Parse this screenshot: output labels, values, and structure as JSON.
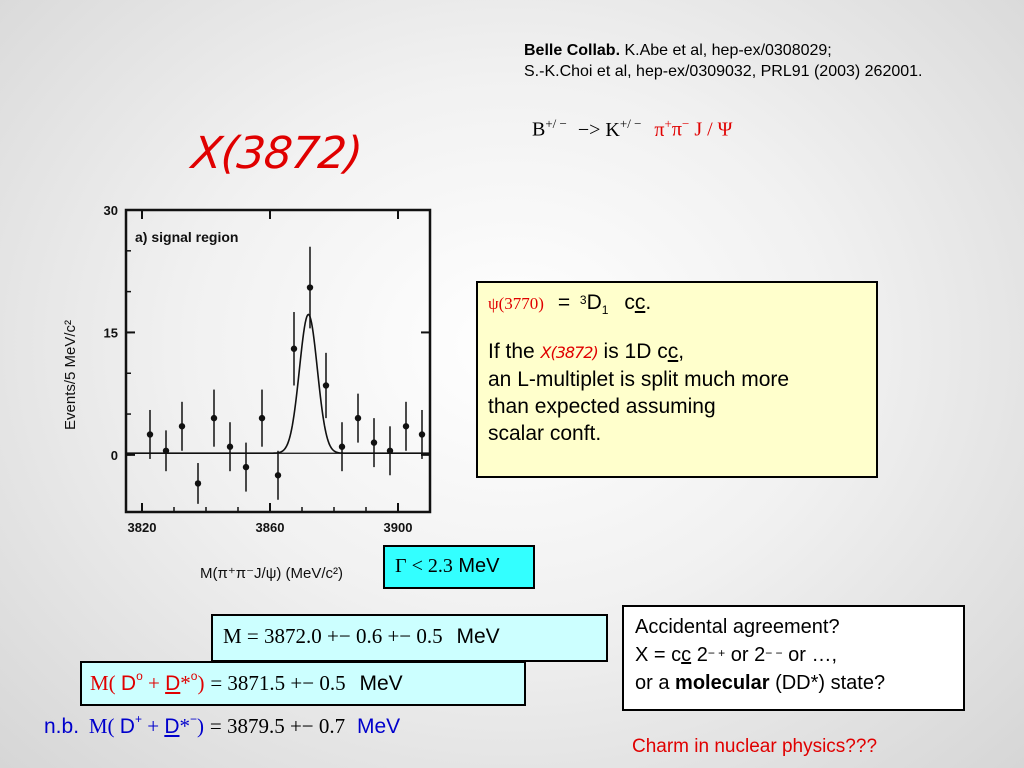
{
  "reference": {
    "bold": "Belle Collab.",
    "line1_rest": " K.Abe et al, hep-ex/0308029;",
    "line2": "S.-K.Choi et al, hep-ex/0309032, PRL91 (2003) 262001."
  },
  "decay": {
    "b": "B",
    "b_charge": "+/ −",
    "arrow": "−> K",
    "k_charge": "+/ −",
    "pi1": "π",
    "pi1_charge": "+",
    "pi2": "π",
    "pi2_charge": "−",
    "jpsi": "J / Ψ"
  },
  "title": "X(3872)",
  "plot": {
    "panel_label": "a) signal region",
    "ylabel": "Events/5 MeV/c²",
    "xlabel": "M(π⁺π⁻J/ψ) (MeV/c²)",
    "yticks": [
      "30",
      "15",
      "0"
    ],
    "xticks": [
      "3820",
      "3860",
      "3900"
    ]
  },
  "chart_data": {
    "type": "scatter",
    "title": "",
    "panel_label": "a) signal region",
    "xlabel": "M(π⁺π⁻J/ψ) (MeV/c²)",
    "ylabel": "Events/5 MeV/c²",
    "xlim": [
      3815,
      3910
    ],
    "ylim": [
      -7,
      30
    ],
    "points": [
      {
        "x": 3822.5,
        "y": 2.5,
        "err": 3
      },
      {
        "x": 3827.5,
        "y": 0.5,
        "err": 2.5
      },
      {
        "x": 3832.5,
        "y": 3.5,
        "err": 3
      },
      {
        "x": 3837.5,
        "y": -3.5,
        "err": 2.5
      },
      {
        "x": 3842.5,
        "y": 4.5,
        "err": 3.5
      },
      {
        "x": 3847.5,
        "y": 1.0,
        "err": 3
      },
      {
        "x": 3852.5,
        "y": -1.5,
        "err": 3
      },
      {
        "x": 3857.5,
        "y": 4.5,
        "err": 3.5
      },
      {
        "x": 3862.5,
        "y": -2.5,
        "err": 3
      },
      {
        "x": 3867.5,
        "y": 13.0,
        "err": 4.5
      },
      {
        "x": 3872.5,
        "y": 20.5,
        "err": 5
      },
      {
        "x": 3877.5,
        "y": 8.5,
        "err": 4
      },
      {
        "x": 3882.5,
        "y": 1.0,
        "err": 3
      },
      {
        "x": 3887.5,
        "y": 4.5,
        "err": 3
      },
      {
        "x": 3892.5,
        "y": 1.5,
        "err": 3
      },
      {
        "x": 3897.5,
        "y": 0.5,
        "err": 3
      },
      {
        "x": 3902.5,
        "y": 3.5,
        "err": 3
      },
      {
        "x": 3907.5,
        "y": 2.5,
        "err": 3
      }
    ],
    "fit": {
      "background": 0.2,
      "peak_x": 3872.0,
      "peak_height": 17.0,
      "sigma": 2.8
    }
  },
  "info": {
    "psi": "ψ(3770)",
    "eq": "=",
    "state_sup": "3",
    "state": "D",
    "state_sub": "1",
    "cc": "c",
    "cc_bar": "c",
    "dot": ".",
    "if_the": "If the",
    "x_name": "X(3872)",
    "is_1d": " is 1D c",
    "is_1d_bar": "c",
    "comma": ",",
    "line3": "an L-multiplet is split much more",
    "line4": "than expected assuming",
    "line5": "scalar conft."
  },
  "width_box": {
    "gamma": "Γ < 2.3",
    "unit": " MeV"
  },
  "mass_box": {
    "text": "M =  3872.0 +− 0.6 +− 0.5",
    "unit": "MeV"
  },
  "sum0_box": {
    "m": "M( ",
    "d": "D",
    "d_sup": "o",
    "plus": " + ",
    "dstar": "D",
    "dstar_rest": "*",
    "dstar_sup": "o",
    "close": ")",
    "value": "  =  3871.5 +− 0.5",
    "unit": "MeV"
  },
  "nb": {
    "label": "n.b.",
    "m": "M( ",
    "d": "D",
    "d_sup": "+",
    "plus": " + ",
    "dstar": "D",
    "dstar_rest": "*",
    "dstar_sup": "−",
    "close": ")",
    "value": "  =  3879.5 +− 0.7",
    "unit": "MeV"
  },
  "accidental": {
    "line1": "Accidental agreement?",
    "l2_a": "X = c",
    "l2_bar": "c",
    "l2_b": " 2",
    "l2_sup1": "− +",
    "l2_c": " or 2",
    "l2_sup2": "− −",
    "l2_d": " or …,",
    "l3_a": "or a ",
    "l3_bold": "molecular",
    "l3_b": " (DD*) state?"
  },
  "footer": "Charm in nuclear physics???",
  "colors": {
    "title": "#e00000",
    "info_bg": "#ffffcc",
    "width_bg": "#33ffff",
    "mass_bg": "#ccffff"
  }
}
